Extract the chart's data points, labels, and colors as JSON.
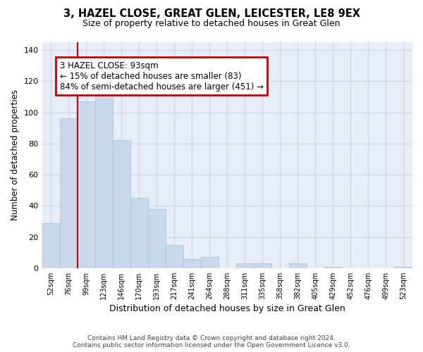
{
  "title": "3, HAZEL CLOSE, GREAT GLEN, LEICESTER, LE8 9EX",
  "subtitle": "Size of property relative to detached houses in Great Glen",
  "xlabel": "Distribution of detached houses by size in Great Glen",
  "ylabel": "Number of detached properties",
  "bar_color": "#c9d9eb",
  "bar_edge_color": "#a8c4d8",
  "categories": [
    "52sqm",
    "76sqm",
    "99sqm",
    "123sqm",
    "146sqm",
    "170sqm",
    "193sqm",
    "217sqm",
    "241sqm",
    "264sqm",
    "288sqm",
    "311sqm",
    "335sqm",
    "358sqm",
    "382sqm",
    "405sqm",
    "429sqm",
    "452sqm",
    "476sqm",
    "499sqm",
    "523sqm"
  ],
  "values": [
    29,
    96,
    107,
    111,
    82,
    45,
    38,
    15,
    6,
    7,
    0,
    3,
    3,
    0,
    3,
    0,
    1,
    0,
    0,
    0,
    1
  ],
  "ylim": [
    0,
    145
  ],
  "yticks": [
    0,
    20,
    40,
    60,
    80,
    100,
    120,
    140
  ],
  "property_line_x": 1.5,
  "annotation_text": "3 HAZEL CLOSE: 93sqm\n← 15% of detached houses are smaller (83)\n84% of semi-detached houses are larger (451) →",
  "annotation_box_color": "white",
  "annotation_border_color": "#cc0000",
  "property_line_color": "#cc0000",
  "grid_color": "#c8d4e8",
  "background_color": "#e8eef8",
  "footer_line1": "Contains HM Land Registry data © Crown copyright and database right 2024.",
  "footer_line2": "Contains public sector information licensed under the Open Government Licence v3.0."
}
